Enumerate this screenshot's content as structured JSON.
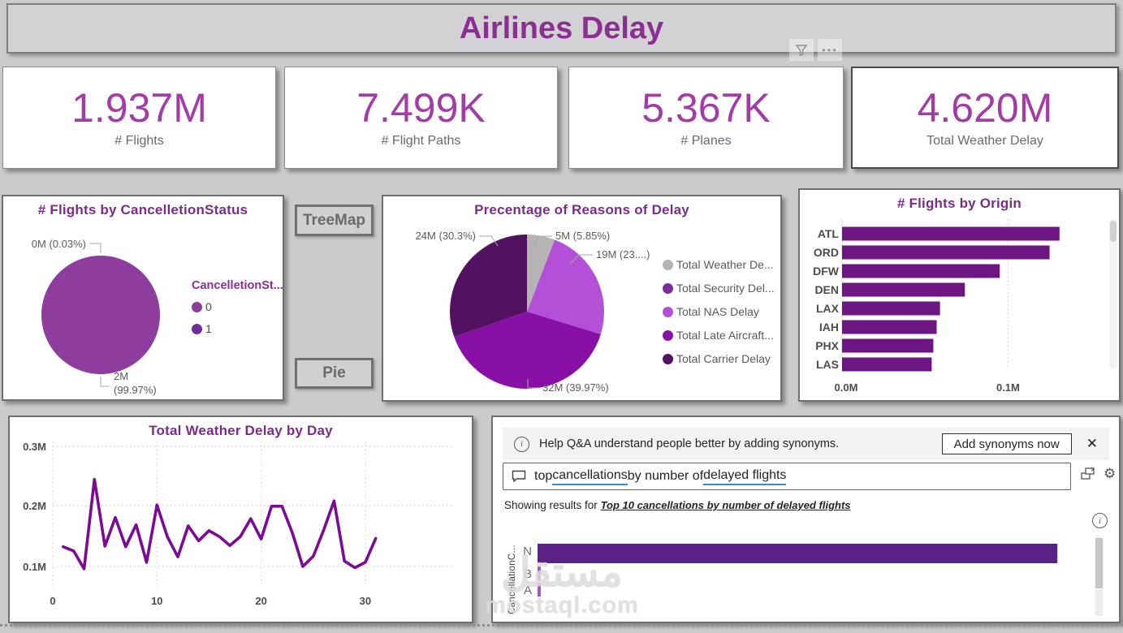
{
  "header": {
    "title": "Airlines Delay"
  },
  "kpi_cards": [
    {
      "value": "1.937M",
      "label": "# Flights"
    },
    {
      "value": "7.499K",
      "label": "# Flight Paths"
    },
    {
      "value": "5.367K",
      "label": "# Planes"
    },
    {
      "value": "4.620M",
      "label": "Total Weather Delay"
    }
  ],
  "nav_buttons": {
    "treemap_label": "TreeMap",
    "pie_label": "Pie"
  },
  "colors": {
    "accent_purple": "#8b3092",
    "kpi_value_purple": "#a33ca6",
    "title_purple": "#7b2c8b",
    "origin_bar_purple": "#6d1583",
    "line_purple": "#7d0a96",
    "qna_bar_purple": "#5b2185",
    "underline_blue": "#3b8bd0",
    "gray_slice": "#b7b4b5"
  },
  "chart_data": [
    {
      "id": "cancellation_pie",
      "type": "pie",
      "title": "# Flights by CancelletionStatus",
      "legend_title": "CancelletionSt...",
      "legend_position": "right",
      "slices": [
        {
          "label": "1",
          "value": "0M",
          "percent": 0.03,
          "callout": "0M (0.03%)",
          "color": "#5d2a9e"
        },
        {
          "label": "0",
          "value": "2M",
          "percent": 99.97,
          "callout": "2M (99.97%)",
          "color": "#8e3c9e"
        }
      ],
      "legend_items": [
        {
          "label": "0",
          "color": "#8e3c9e"
        },
        {
          "label": "1",
          "color": "#6b2e9f"
        }
      ]
    },
    {
      "id": "delay_reasons_pie",
      "type": "pie",
      "title": "Precentage of Reasons of Delay",
      "legend_position": "right",
      "slices": [
        {
          "label": "Total Weather Delay",
          "value": "5M",
          "percent": 5.85,
          "callout": "5M (5.85%)",
          "color": "#b7b4b5"
        },
        {
          "label": "Total Security Delay",
          "value": "0M",
          "percent": 0,
          "callout": "",
          "color": "#7b2da0"
        },
        {
          "label": "Total NAS Delay",
          "value": "19M",
          "percent": 23.88,
          "callout": "19M (23....)",
          "color": "#b44fd8"
        },
        {
          "label": "Total Late Aircraft Delay",
          "value": "32M",
          "percent": 39.97,
          "callout": "32M (39.97%)",
          "color": "#8810a6"
        },
        {
          "label": "Total Carrier Delay",
          "value": "24M",
          "percent": 30.3,
          "callout": "24M (30.3%)",
          "color": "#521161"
        }
      ],
      "legend_items": [
        {
          "label": "Total Weather De...",
          "color": "#b7b4b5"
        },
        {
          "label": "Total Security Del...",
          "color": "#7b2da0"
        },
        {
          "label": "Total NAS Delay",
          "color": "#b44fd8"
        },
        {
          "label": "Total Late Aircraft...",
          "color": "#8810a6"
        },
        {
          "label": "Total Carrier Delay",
          "color": "#521161"
        }
      ]
    },
    {
      "id": "flights_by_origin_bar",
      "type": "bar",
      "orientation": "horizontal",
      "title": "# Flights by Origin",
      "categories": [
        "ATL",
        "ORD",
        "DFW",
        "DEN",
        "LAX",
        "IAH",
        "PHX",
        "LAS"
      ],
      "values_M": [
        0.131,
        0.125,
        0.095,
        0.074,
        0.059,
        0.057,
        0.055,
        0.054
      ],
      "x_ticks": [
        "0.0M",
        "0.1M"
      ],
      "xlim_M": [
        0,
        0.158
      ],
      "bar_color": "#6d1583"
    },
    {
      "id": "weather_delay_line",
      "type": "line",
      "title": "Total Weather Delay by Day",
      "x_days": [
        1,
        2,
        3,
        4,
        5,
        6,
        7,
        8,
        9,
        10,
        11,
        12,
        13,
        14,
        15,
        16,
        17,
        18,
        19,
        20,
        21,
        22,
        23,
        24,
        25,
        26,
        27,
        28,
        29,
        30,
        31
      ],
      "y_values_M": [
        0.133,
        0.126,
        0.096,
        0.246,
        0.134,
        0.182,
        0.133,
        0.17,
        0.107,
        0.203,
        0.15,
        0.116,
        0.168,
        0.143,
        0.16,
        0.15,
        0.135,
        0.15,
        0.18,
        0.146,
        0.201,
        0.201,
        0.156,
        0.1,
        0.117,
        0.161,
        0.21,
        0.109,
        0.098,
        0.107,
        0.147
      ],
      "y_ticks": [
        "0.1M",
        "0.2M",
        "0.3M"
      ],
      "x_ticks": [
        "0",
        "10",
        "20",
        "30"
      ],
      "ylim_M": [
        0.08,
        0.315
      ],
      "xlim": [
        0,
        33
      ],
      "line_color": "#7d0a96"
    },
    {
      "id": "qna_result_bar",
      "type": "bar",
      "orientation": "horizontal",
      "axis_label": "CancellationC...",
      "categories": [
        "N",
        "B",
        "A"
      ],
      "values_fraction": [
        0.97,
        0.006,
        0.006
      ],
      "bar_color": "#5b2185"
    }
  ],
  "qna": {
    "banner": {
      "text": "Help Q&A understand people better by adding synonyms.",
      "button_label": "Add synonyms now",
      "close_label": "✕",
      "info_glyph": "i"
    },
    "search": {
      "part1": "top ",
      "part2": "cancellations",
      "part3": " by number of ",
      "part4": "delayed flights"
    },
    "results": {
      "prefix": "Showing results for ",
      "link": "Top 10 cancellations by number of delayed flights",
      "info_glyph": "i"
    }
  },
  "watermark": {
    "arabic": "مستقل",
    "latin": "mostaql.com"
  }
}
